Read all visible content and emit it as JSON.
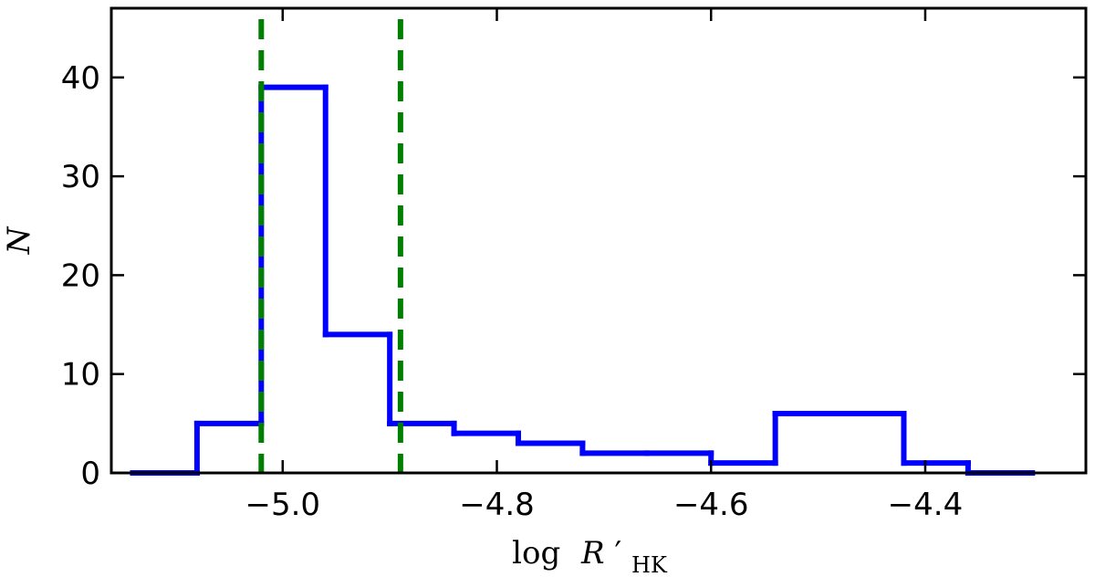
{
  "chart_data": {
    "type": "histogram",
    "title": "",
    "xlabel": {
      "prefix": "log",
      "symbol": "R",
      "prime": "′",
      "subscript": "HK"
    },
    "ylabel": "N",
    "xlim": [
      -5.16,
      -4.25
    ],
    "ylim": [
      0,
      47
    ],
    "xticks": [
      -5.0,
      -4.8,
      -4.6,
      -4.4
    ],
    "xtick_labels": [
      "−5.0",
      "−4.8",
      "−4.6",
      "−4.4"
    ],
    "yticks": [
      0,
      10,
      20,
      30,
      40
    ],
    "ytick_labels": [
      "0",
      "10",
      "20",
      "30",
      "40"
    ],
    "grid": false,
    "bins": [
      {
        "x0": -5.14,
        "x1": -5.08,
        "value": 0
      },
      {
        "x0": -5.08,
        "x1": -5.02,
        "value": 5
      },
      {
        "x0": -5.02,
        "x1": -4.96,
        "value": 39
      },
      {
        "x0": -4.96,
        "x1": -4.9,
        "value": 14
      },
      {
        "x0": -4.9,
        "x1": -4.84,
        "value": 5
      },
      {
        "x0": -4.84,
        "x1": -4.78,
        "value": 4
      },
      {
        "x0": -4.78,
        "x1": -4.72,
        "value": 3
      },
      {
        "x0": -4.72,
        "x1": -4.66,
        "value": 2
      },
      {
        "x0": -4.66,
        "x1": -4.6,
        "value": 2
      },
      {
        "x0": -4.6,
        "x1": -4.54,
        "value": 1
      },
      {
        "x0": -4.54,
        "x1": -4.48,
        "value": 6
      },
      {
        "x0": -4.48,
        "x1": -4.42,
        "value": 6
      },
      {
        "x0": -4.42,
        "x1": -4.36,
        "value": 1
      },
      {
        "x0": -4.36,
        "x1": -4.3,
        "value": 0
      }
    ],
    "vlines": [
      {
        "x": -5.02,
        "style": "dashed"
      },
      {
        "x": -4.89,
        "style": "dashed"
      }
    ],
    "colors": {
      "histogram": "#0000ff",
      "vlines": "#007f00",
      "axes": "#000000"
    }
  }
}
